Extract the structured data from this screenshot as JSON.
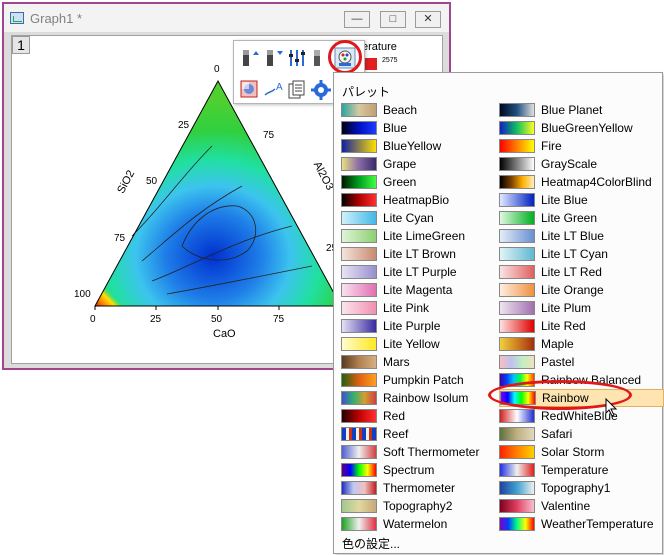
{
  "window": {
    "title": "Graph1 *",
    "layer": "1"
  },
  "plot": {
    "left_ticks": [
      "0",
      "25",
      "50",
      "75",
      "100"
    ],
    "right_ticks": [
      "75",
      "25"
    ],
    "bottom_ticks": [
      "0",
      "25",
      "50",
      "75"
    ],
    "left_axis": "SiO2",
    "right_axis": "Al2O3",
    "bottom_axis": "CaO"
  },
  "legend": {
    "title": "erature",
    "value": "2575"
  },
  "palette_menu": {
    "header": "パレット",
    "footer": "色の設定...",
    "left_column": [
      {
        "label": "Beach",
        "grad": "linear-gradient(90deg,#2aa5a0,#d8c8a0,#c0a070)"
      },
      {
        "label": "Blue",
        "grad": "linear-gradient(90deg,#000010,#0010c0,#1a3cff)"
      },
      {
        "label": "BlueYellow",
        "grad": "linear-gradient(90deg,#1020a0,#ffe000)"
      },
      {
        "label": "Grape",
        "grad": "linear-gradient(90deg,#e6e080,#8a6aa8,#3a2a6a)"
      },
      {
        "label": "Green",
        "grad": "linear-gradient(90deg,#001800,#00a020,#40ff40)"
      },
      {
        "label": "HeatmapBio",
        "grad": "linear-gradient(90deg,#000,#b00000,#ff3030)"
      },
      {
        "label": "Lite Cyan",
        "grad": "linear-gradient(90deg,#d0f0fa,#40b8e8)"
      },
      {
        "label": "Lite LimeGreen",
        "grad": "linear-gradient(90deg,#e0f4d8,#8cd070)"
      },
      {
        "label": "Lite LT Brown",
        "grad": "linear-gradient(90deg,#f4e4dc,#c88a70)"
      },
      {
        "label": "Lite LT Purple",
        "grad": "linear-gradient(90deg,#e8e4f4,#9890cc)"
      },
      {
        "label": "Lite Magenta",
        "grad": "linear-gradient(90deg,#fbe0f0,#e070b0)"
      },
      {
        "label": "Lite Pink",
        "grad": "linear-gradient(90deg,#fde4ec,#f090b0)"
      },
      {
        "label": "Lite Purple",
        "grad": "linear-gradient(90deg,#e4e0f4,#3a2aa0)"
      },
      {
        "label": "Lite Yellow",
        "grad": "linear-gradient(90deg,#fffcd0,#ffe820)"
      },
      {
        "label": "Mars",
        "grad": "linear-gradient(90deg,#5a3a20,#b08050,#d8b080)"
      },
      {
        "label": "Pumpkin Patch",
        "grad": "linear-gradient(90deg,#206010,#e06010,#ffa020)"
      },
      {
        "label": "Rainbow Isolum",
        "grad": "linear-gradient(90deg,#4050d0,#30b070,#d0a030,#d04040)"
      },
      {
        "label": "Red",
        "grad": "linear-gradient(90deg,#200000,#c00000,#ff3030)"
      },
      {
        "label": "Reef",
        "grad": "repeating-linear-gradient(90deg,#1040c0 0 4px,#f0f0f0 4px 7px,#d03010 7px 10px)"
      },
      {
        "label": "Soft Thermometer",
        "grad": "linear-gradient(90deg,#5060d0,#f0f0f0,#d04040)"
      },
      {
        "label": "Spectrum",
        "grad": "linear-gradient(90deg,#600080,#0000ff,#00ff00,#ffff00,#ff0000)"
      },
      {
        "label": "Thermometer",
        "grad": "linear-gradient(90deg,#2030c0,#c0c8f0,#f0c0c0,#c02020)"
      },
      {
        "label": "Topography2",
        "grad": "linear-gradient(90deg,#a0c890,#e0d8a0,#c8a878)"
      },
      {
        "label": "Watermelon",
        "grad": "linear-gradient(90deg,#20a020,#f0f0f0,#e03040)"
      }
    ],
    "right_column": [
      {
        "label": "Blue Planet",
        "grad": "linear-gradient(90deg,#000820,#205080,#e0e0e0)"
      },
      {
        "label": "BlueGreenYellow",
        "grad": "linear-gradient(90deg,#1020c0,#10c060,#ffff20)"
      },
      {
        "label": "Fire",
        "grad": "linear-gradient(90deg,#ff0000,#ff8000,#ffff00)"
      },
      {
        "label": "GrayScale",
        "grad": "linear-gradient(90deg,#000,#fff)"
      },
      {
        "label": "Heatmap4ColorBlind",
        "grad": "linear-gradient(90deg,#000,#7a4000,#ffb000,#fff0c0)"
      },
      {
        "label": "Lite Blue",
        "grad": "linear-gradient(90deg,#e0e8ff,#0020c0)"
      },
      {
        "label": "Lite Green",
        "grad": "linear-gradient(90deg,#e0f8e0,#00b020)"
      },
      {
        "label": "Lite LT Blue",
        "grad": "linear-gradient(90deg,#e4ecf8,#6890d0)"
      },
      {
        "label": "Lite LT Cyan",
        "grad": "linear-gradient(90deg,#e0f4f8,#60b8d0)"
      },
      {
        "label": "Lite LT Red",
        "grad": "linear-gradient(90deg,#fbe4e4,#e06060)"
      },
      {
        "label": "Lite Orange",
        "grad": "linear-gradient(90deg,#fdeee0,#f09040)"
      },
      {
        "label": "Lite Plum",
        "grad": "linear-gradient(90deg,#f0e4f0,#a070b0)"
      },
      {
        "label": "Lite Red",
        "grad": "linear-gradient(90deg,#fde0e0,#e00000)"
      },
      {
        "label": "Maple",
        "grad": "linear-gradient(90deg,#f0d040,#d08020,#a03010)"
      },
      {
        "label": "Pastel",
        "grad": "linear-gradient(90deg,#f8c0c0,#c0c0f0,#c0f0c0,#f0e0c0)"
      },
      {
        "label": "Rainbow Balanced",
        "grad": "linear-gradient(90deg,#4000a0,#0040ff,#00c0ff,#00ff40,#ffff00,#ff4000)"
      },
      {
        "label": "Rainbow",
        "grad": "linear-gradient(90deg,#8000ff,#0000ff,#00ffff,#00ff00,#ffff00,#ff0000)"
      },
      {
        "label": "RedWhiteBlue",
        "grad": "linear-gradient(90deg,#d02020,#ffffff,#2030d0)"
      },
      {
        "label": "Safari",
        "grad": "linear-gradient(90deg,#607040,#c0b080,#e0d8c0)"
      },
      {
        "label": "Solar Storm",
        "grad": "linear-gradient(90deg,#ff2000,#ff8000,#ffd000)"
      },
      {
        "label": "Temperature",
        "grad": "linear-gradient(90deg,#2030e0,#f0f0f0,#e02020)"
      },
      {
        "label": "Topography1",
        "grad": "linear-gradient(90deg,#2040a0,#40a0d0,#f0f0f0)"
      },
      {
        "label": "Valentine",
        "grad": "linear-gradient(90deg,#800020,#e04060,#f8c0d0)"
      },
      {
        "label": "WeatherTemperature",
        "grad": "linear-gradient(90deg,#8000c0,#0040ff,#00ff80,#ffff00,#ff0000)"
      }
    ],
    "selected": "Rainbow"
  }
}
